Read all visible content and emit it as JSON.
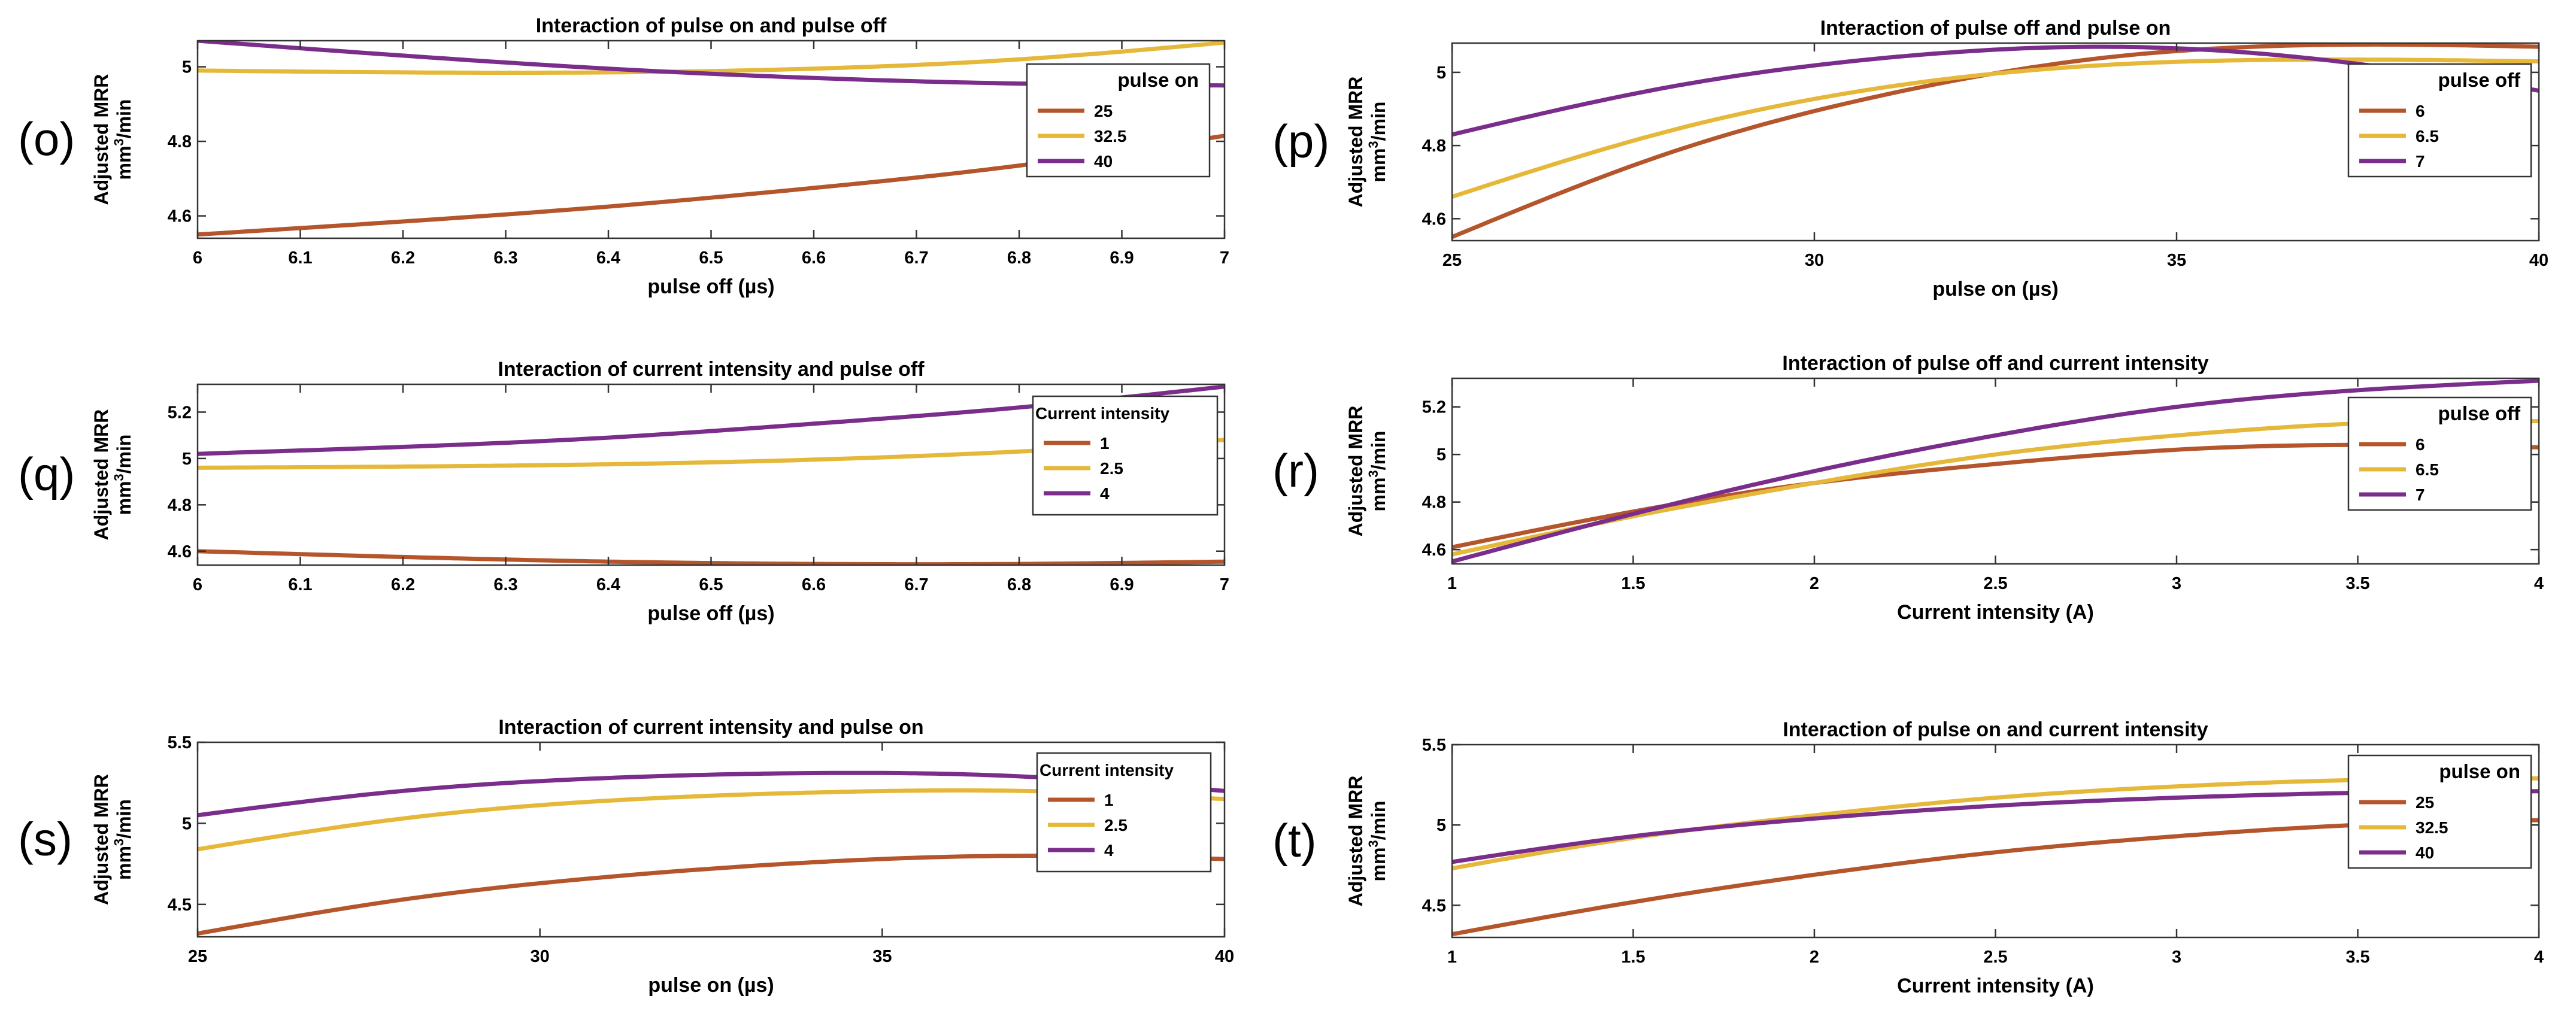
{
  "colors": {
    "series1": "#b5552c",
    "series2": "#e6b83a",
    "series3": "#7b2d8b"
  },
  "y_label_main": "Adjusted MRR",
  "y_label_unit_pre": "mm",
  "y_label_unit_sup": "3",
  "y_label_unit_post": "/min",
  "chart_data": [
    {
      "id": "o",
      "panel_label": "(o)",
      "type": "line",
      "title": "Interaction of pulse on and pulse off",
      "xlabel": "pulse off (µs)",
      "xlim": [
        6,
        7
      ],
      "ylim": [
        4.54,
        5.07
      ],
      "xticks": [
        6,
        6.1,
        6.2,
        6.3,
        6.4,
        6.5,
        6.6,
        6.7,
        6.8,
        6.9,
        7
      ],
      "xtick_labels": [
        "6",
        "6.1",
        "6.2",
        "6.3",
        "6.4",
        "6.5",
        "6.6",
        "6.7",
        "6.8",
        "6.9",
        "7"
      ],
      "yticks": [
        4.6,
        4.8,
        5
      ],
      "ytick_labels": [
        "4.6",
        "4.8",
        "5"
      ],
      "legend_title": "pulse on",
      "legend_position": "top-right",
      "series": [
        {
          "name": "25",
          "x": [
            6,
            6.2,
            6.4,
            6.6,
            6.8,
            7
          ],
          "values": [
            4.55,
            4.585,
            4.625,
            4.675,
            4.735,
            4.815
          ]
        },
        {
          "name": "32.5",
          "x": [
            6,
            6.2,
            6.4,
            6.6,
            6.8,
            7
          ],
          "values": [
            4.99,
            4.985,
            4.985,
            4.995,
            5.02,
            5.065
          ]
        },
        {
          "name": "40",
          "x": [
            6,
            6.2,
            6.4,
            6.6,
            6.8,
            7
          ],
          "values": [
            5.07,
            5.03,
            4.995,
            4.97,
            4.955,
            4.95
          ]
        }
      ]
    },
    {
      "id": "p",
      "panel_label": "(p)",
      "type": "line",
      "title": "Interaction of pulse off and pulse on",
      "xlabel": "pulse on (µs)",
      "xlim": [
        25,
        40
      ],
      "ylim": [
        4.54,
        5.08
      ],
      "xticks": [
        25,
        30,
        35,
        40
      ],
      "xtick_labels": [
        "25",
        "30",
        "35",
        "40"
      ],
      "yticks": [
        4.6,
        4.8,
        5
      ],
      "ytick_labels": [
        "4.6",
        "4.8",
        "5"
      ],
      "legend_title": "pulse off",
      "legend_position": "top-right",
      "series": [
        {
          "name": "6",
          "x": [
            25,
            28,
            31,
            34,
            37,
            40
          ],
          "values": [
            4.55,
            4.78,
            4.94,
            5.04,
            5.075,
            5.07
          ]
        },
        {
          "name": "6.5",
          "x": [
            25,
            28,
            31,
            34,
            37,
            40
          ],
          "values": [
            4.66,
            4.84,
            4.96,
            5.02,
            5.035,
            5.03
          ]
        },
        {
          "name": "7",
          "x": [
            25,
            28,
            31,
            34,
            37,
            40
          ],
          "values": [
            4.83,
            4.96,
            5.04,
            5.07,
            5.035,
            4.95
          ]
        }
      ]
    },
    {
      "id": "q",
      "panel_label": "(q)",
      "type": "line",
      "title": "Interaction of current intensity and pulse off",
      "xlabel": "pulse off (µs)",
      "xlim": [
        6,
        7
      ],
      "ylim": [
        4.54,
        5.32
      ],
      "xticks": [
        6,
        6.1,
        6.2,
        6.3,
        6.4,
        6.5,
        6.6,
        6.7,
        6.8,
        6.9,
        7
      ],
      "xtick_labels": [
        "6",
        "6.1",
        "6.2",
        "6.3",
        "6.4",
        "6.5",
        "6.6",
        "6.7",
        "6.8",
        "6.9",
        "7"
      ],
      "yticks": [
        4.6,
        4.8,
        5,
        5.2
      ],
      "ytick_labels": [
        "4.6",
        "4.8",
        "5",
        "5.2"
      ],
      "legend_title": "Current intensity",
      "legend_position": "top-right",
      "series": [
        {
          "name": "1",
          "x": [
            6,
            6.2,
            6.4,
            6.6,
            6.8,
            7
          ],
          "values": [
            4.6,
            4.575,
            4.555,
            4.545,
            4.545,
            4.555
          ]
        },
        {
          "name": "2.5",
          "x": [
            6,
            6.2,
            6.4,
            6.6,
            6.8,
            7
          ],
          "values": [
            4.96,
            4.965,
            4.975,
            4.995,
            5.03,
            5.08
          ]
        },
        {
          "name": "4",
          "x": [
            6,
            6.2,
            6.4,
            6.6,
            6.8,
            7
          ],
          "values": [
            5.02,
            5.05,
            5.09,
            5.15,
            5.22,
            5.31
          ]
        }
      ]
    },
    {
      "id": "r",
      "panel_label": "(r)",
      "type": "line",
      "title": "Interaction of pulse off and current intensity",
      "xlabel": "Current intensity (A)",
      "xlim": [
        1,
        4
      ],
      "ylim": [
        4.54,
        5.32
      ],
      "xticks": [
        1,
        1.5,
        2,
        2.5,
        3,
        3.5,
        4
      ],
      "xtick_labels": [
        "1",
        "1.5",
        "2",
        "2.5",
        "3",
        "3.5",
        "4"
      ],
      "yticks": [
        4.6,
        4.8,
        5,
        5.2
      ],
      "ytick_labels": [
        "4.6",
        "4.8",
        "5",
        "5.2"
      ],
      "legend_title": "pulse off",
      "legend_position": "top-right",
      "series": [
        {
          "name": "6",
          "x": [
            1,
            1.5,
            2,
            2.5,
            3,
            3.5,
            4
          ],
          "values": [
            4.61,
            4.76,
            4.88,
            4.96,
            5.02,
            5.04,
            5.03
          ]
        },
        {
          "name": "6.5",
          "x": [
            1,
            1.5,
            2,
            2.5,
            3,
            3.5,
            4
          ],
          "values": [
            4.58,
            4.74,
            4.88,
            5.0,
            5.08,
            5.13,
            5.14
          ]
        },
        {
          "name": "7",
          "x": [
            1,
            1.5,
            2,
            2.5,
            3,
            3.5,
            4
          ],
          "values": [
            4.55,
            4.75,
            4.93,
            5.08,
            5.2,
            5.27,
            5.31
          ]
        }
      ]
    },
    {
      "id": "s",
      "panel_label": "(s)",
      "type": "line",
      "title": "Interaction of current intensity and pulse on",
      "xlabel": "pulse on (µs)",
      "xlim": [
        25,
        40
      ],
      "ylim": [
        4.3,
        5.5
      ],
      "xticks": [
        25,
        30,
        35,
        40
      ],
      "xtick_labels": [
        "25",
        "30",
        "35",
        "40"
      ],
      "yticks": [
        4.5,
        5,
        5.5
      ],
      "ytick_labels": [
        "4.5",
        "5",
        "5.5"
      ],
      "legend_title": "Current intensity",
      "legend_position": "top-right",
      "series": [
        {
          "name": "1",
          "x": [
            25,
            28,
            31,
            34,
            37,
            40
          ],
          "values": [
            4.32,
            4.53,
            4.67,
            4.76,
            4.8,
            4.78
          ]
        },
        {
          "name": "2.5",
          "x": [
            25,
            28,
            31,
            34,
            37,
            40
          ],
          "values": [
            4.84,
            5.03,
            5.14,
            5.19,
            5.2,
            5.15
          ]
        },
        {
          "name": "4",
          "x": [
            25,
            28,
            31,
            34,
            37,
            40
          ],
          "values": [
            5.05,
            5.2,
            5.28,
            5.31,
            5.29,
            5.2
          ]
        }
      ]
    },
    {
      "id": "t",
      "panel_label": "(t)",
      "type": "line",
      "title": "Interaction of pulse on and current intensity",
      "xlabel": "Current intensity (A)",
      "xlim": [
        1,
        4
      ],
      "ylim": [
        4.3,
        5.5
      ],
      "xticks": [
        1,
        1.5,
        2,
        2.5,
        3,
        3.5,
        4
      ],
      "xtick_labels": [
        "1",
        "1.5",
        "2",
        "2.5",
        "3",
        "3.5",
        "4"
      ],
      "yticks": [
        4.5,
        5,
        5.5
      ],
      "ytick_labels": [
        "4.5",
        "5",
        "5.5"
      ],
      "legend_title": "pulse on",
      "legend_position": "top-right",
      "series": [
        {
          "name": "25",
          "x": [
            1,
            1.5,
            2,
            2.5,
            3,
            3.5,
            4
          ],
          "values": [
            4.32,
            4.52,
            4.69,
            4.83,
            4.93,
            5.0,
            5.03
          ]
        },
        {
          "name": "32.5",
          "x": [
            1,
            1.5,
            2,
            2.5,
            3,
            3.5,
            4
          ],
          "values": [
            4.73,
            4.92,
            5.06,
            5.17,
            5.24,
            5.28,
            5.29
          ]
        },
        {
          "name": "40",
          "x": [
            1,
            1.5,
            2,
            2.5,
            3,
            3.5,
            4
          ],
          "values": [
            4.77,
            4.93,
            5.04,
            5.12,
            5.17,
            5.2,
            5.21
          ]
        }
      ]
    }
  ]
}
